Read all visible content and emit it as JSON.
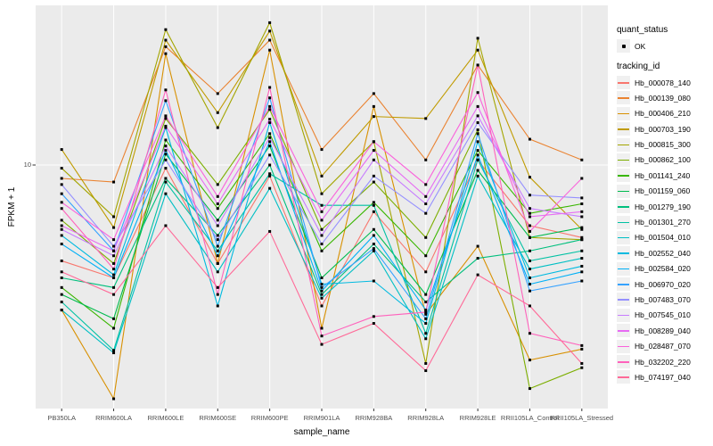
{
  "figure": {
    "y_axis": {
      "title": "FPKM + 1",
      "tick_labels": [
        "10"
      ]
    },
    "x_axis": {
      "title": "sample_name"
    },
    "legend": {
      "quant_status_title": "quant_status",
      "quant_status_items": [
        {
          "label": "OK"
        }
      ],
      "tracking_id_title": "tracking_id"
    },
    "colors": {
      "panel_bg": "#EBEBEB",
      "grid": "#FFFFFF",
      "point": "#000000",
      "tick_mark": "#333333",
      "tick_text": "#4D4D4D"
    }
  },
  "chart_data": {
    "type": "line",
    "title": "",
    "xlabel": "sample_name",
    "ylabel": "FPKM + 1",
    "y_scale": "log10",
    "y_ticks": [
      10
    ],
    "ylim": [
      1,
      46
    ],
    "grid": true,
    "legend_position": "right",
    "point_shape": "small-black-square",
    "categories": [
      "PB350LA",
      "RRIM600LA",
      "RRIM600LE",
      "RRIM600SE",
      "RRIM600PE",
      "RRIM901LA",
      "RRIM928BA",
      "RRIM928LA",
      "RRIM928LE",
      "RRII105LA_Control",
      "RRII105LA_Stressed"
    ],
    "quant_status": "OK",
    "series": [
      {
        "name": "Hb_000078_140",
        "color": "#F8766D",
        "values": [
          4.0,
          3.4,
          9.7,
          3.9,
          9.0,
          2.6,
          6.4,
          3.6,
          10.5,
          5.6,
          5.0
        ]
      },
      {
        "name": "Hb_000139_080",
        "color": "#EA8331",
        "values": [
          8.8,
          8.5,
          31.0,
          19.8,
          33.0,
          11.6,
          19.8,
          10.5,
          26.0,
          12.8,
          10.5
        ]
      },
      {
        "name": "Hb_000406_210",
        "color": "#D89000",
        "values": [
          2.5,
          1.07,
          29.0,
          3.9,
          30.0,
          2.1,
          17.5,
          2.4,
          4.6,
          1.55,
          1.72
        ]
      },
      {
        "name": "Hb_000703_190",
        "color": "#C09B00",
        "values": [
          11.6,
          5.5,
          33.0,
          16.5,
          36.0,
          9.0,
          15.9,
          15.6,
          30.0,
          8.9,
          5.4
        ]
      },
      {
        "name": "Hb_000815_300",
        "color": "#A3A500",
        "values": [
          9.7,
          6.1,
          36.5,
          14.3,
          39.0,
          7.6,
          12.5,
          1.5,
          33.6,
          5.0,
          4.9
        ]
      },
      {
        "name": "Hb_000862_100",
        "color": "#7CAE00",
        "values": [
          5.9,
          3.9,
          15.6,
          8.3,
          17.0,
          5.4,
          8.5,
          5.0,
          14.0,
          1.18,
          1.44
        ]
      },
      {
        "name": "Hb_001141_240",
        "color": "#39B600",
        "values": [
          3.1,
          2.1,
          12.7,
          6.6,
          13.5,
          4.4,
          7.0,
          4.2,
          11.5,
          6.3,
          6.9
        ]
      },
      {
        "name": "Hb_001159_060",
        "color": "#00BB4E",
        "values": [
          2.9,
          2.3,
          11.1,
          5.9,
          12.0,
          3.4,
          5.4,
          2.9,
          9.5,
          5.0,
          5.5
        ]
      },
      {
        "name": "Hb_001279_190",
        "color": "#00BF7D",
        "values": [
          3.4,
          3.1,
          8.8,
          5.1,
          10.0,
          2.9,
          4.7,
          2.7,
          4.1,
          4.4,
          4.9
        ]
      },
      {
        "name": "Hb_001301_270",
        "color": "#00C1A3",
        "values": [
          2.7,
          1.7,
          8.5,
          4.4,
          9.2,
          6.8,
          6.8,
          2.0,
          10.5,
          4.0,
          4.4
        ]
      },
      {
        "name": "Hb_001504_010",
        "color": "#00BFC4",
        "values": [
          2.5,
          1.66,
          7.6,
          3.6,
          8.0,
          2.8,
          4.4,
          1.9,
          9.0,
          3.7,
          4.1
        ]
      },
      {
        "name": "Hb_002552_040",
        "color": "#00BAE0",
        "values": [
          5.1,
          3.5,
          14.3,
          2.6,
          15.0,
          3.2,
          3.3,
          2.2,
          12.5,
          3.4,
          3.8
        ]
      },
      {
        "name": "Hb_002584_020",
        "color": "#00B0F6",
        "values": [
          4.7,
          3.4,
          11.5,
          4.2,
          12.5,
          3.0,
          5.1,
          2.5,
          11.0,
          3.2,
          3.6
        ]
      },
      {
        "name": "Hb_006970_020",
        "color": "#35A2FF",
        "values": [
          7.6,
          4.4,
          18.5,
          4.6,
          19.0,
          3.1,
          4.5,
          2.3,
          13.5,
          3.0,
          3.3
        ]
      },
      {
        "name": "Hb_007483_070",
        "color": "#9590FF",
        "values": [
          8.3,
          4.6,
          10.5,
          4.9,
          11.0,
          4.7,
          9.0,
          6.3,
          15.0,
          7.5,
          7.3
        ]
      },
      {
        "name": "Hb_007545_010",
        "color": "#C77CFF",
        "values": [
          5.4,
          4.2,
          12.0,
          5.6,
          13.0,
          5.1,
          10.5,
          6.9,
          16.0,
          6.6,
          6.1
        ]
      },
      {
        "name": "Hb_008289_040",
        "color": "#E76BF3",
        "values": [
          5.6,
          4.4,
          14.5,
          6.9,
          15.5,
          5.9,
          11.5,
          7.4,
          17.5,
          6.1,
          6.4
        ]
      },
      {
        "name": "Hb_028487_070",
        "color": "#FA62DB",
        "values": [
          7.0,
          4.9,
          16.0,
          7.4,
          17.5,
          6.4,
          12.5,
          8.3,
          20.0,
          5.3,
          8.8
        ]
      },
      {
        "name": "Hb_032202_220",
        "color": "#FF62BC",
        "values": [
          6.6,
          3.7,
          20.5,
          2.9,
          21.0,
          1.95,
          2.35,
          2.45,
          26.0,
          2.0,
          1.78
        ]
      },
      {
        "name": "Hb_074197_040",
        "color": "#FF6A98",
        "values": [
          3.6,
          2.9,
          5.6,
          3.1,
          5.3,
          1.8,
          2.2,
          1.4,
          3.5,
          2.6,
          1.5
        ]
      }
    ]
  }
}
